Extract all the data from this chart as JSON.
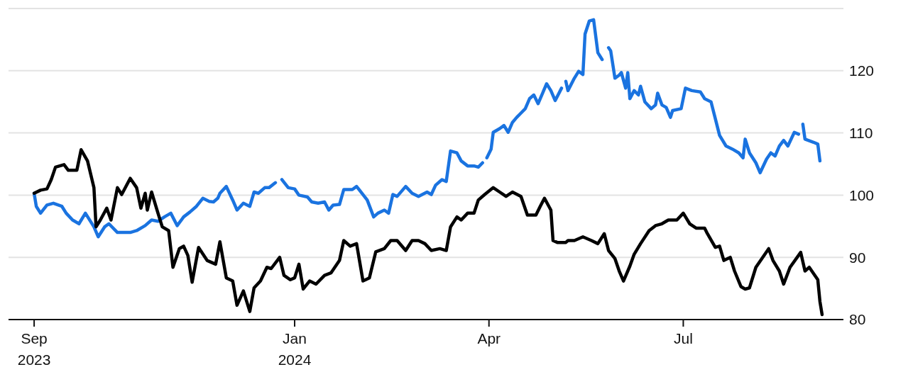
{
  "chart_data": {
    "type": "line",
    "xlim": [
      "2023-08-20",
      "2024-09-14"
    ],
    "xticks": [
      {
        "value": "2023-09-01",
        "label": "Sep 2023"
      },
      {
        "value": "2024-01-01",
        "label": "Jan 2024"
      },
      {
        "value": "2024-04-01",
        "label": "Apr"
      },
      {
        "value": "2024-07-01",
        "label": "Jul"
      }
    ],
    "ylim": [
      80,
      130
    ],
    "yticks": [
      80,
      90,
      100,
      110,
      120
    ],
    "grid": "y",
    "line_style": "solid",
    "marker": "none",
    "series": [
      {
        "color": "#1a73e0",
        "x": [
          "2023-09-01",
          "2023-09-02",
          "2023-09-04",
          "2023-09-07",
          "2023-09-10",
          "2023-09-14",
          "2023-09-16",
          "2023-09-19",
          "2023-09-22",
          "2023-09-25",
          "2023-09-29",
          "2023-10-01",
          "2023-10-04",
          "2023-10-06",
          "2023-10-10",
          "2023-10-13",
          "2023-10-16",
          "2023-10-19",
          "2023-10-23",
          "2023-10-26",
          "2023-10-29",
          "2023-11-01",
          "2023-11-04",
          "2023-11-07",
          "2023-11-10",
          "2023-11-13",
          "2023-11-16",
          "2023-11-19",
          "2023-11-22",
          "2023-11-24",
          "2023-11-26",
          "2023-11-27",
          "2023-11-30",
          "2023-12-03",
          "2023-12-05",
          "2023-12-08",
          "2023-12-11",
          "2023-12-13",
          "2023-12-15",
          "2023-12-18",
          "2023-12-20",
          "2023-12-23",
          "2023-12-24",
          "2023-12-26",
          "2023-12-29",
          "2024-01-01",
          "2024-01-03",
          "2024-01-07",
          "2024-01-09",
          "2024-01-12",
          "2024-01-15",
          "2024-01-17",
          "2024-01-19",
          "2024-01-22",
          "2024-01-24",
          "2024-01-28",
          "2024-01-30",
          "2024-02-02",
          "2024-02-04",
          "2024-02-07",
          "2024-02-09",
          "2024-02-12",
          "2024-02-14",
          "2024-02-16",
          "2024-02-18",
          "2024-02-22",
          "2024-02-25",
          "2024-02-28",
          "2024-03-03",
          "2024-03-05",
          "2024-03-07",
          "2024-03-10",
          "2024-03-12",
          "2024-03-14",
          "2024-03-17",
          "2024-03-19",
          "2024-03-22",
          "2024-03-25",
          "2024-03-27",
          "2024-03-29",
          "2024-03-30",
          "2024-03-31",
          "2024-04-02",
          "2024-04-03",
          "2024-04-06",
          "2024-04-08",
          "2024-04-10",
          "2024-04-12",
          "2024-04-14",
          "2024-04-16",
          "2024-04-18",
          "2024-04-20",
          "2024-04-22",
          "2024-04-24",
          "2024-04-25",
          "2024-04-28",
          "2024-04-30",
          "2024-05-02",
          "2024-05-05",
          "2024-05-06",
          "2024-05-07",
          "2024-05-08",
          "2024-05-11",
          "2024-05-13",
          "2024-05-15",
          "2024-05-16",
          "2024-05-18",
          "2024-05-20",
          "2024-05-22",
          "2024-05-24",
          "2024-05-26",
          "2024-05-27",
          "2024-05-28",
          "2024-05-30",
          "2024-06-01",
          "2024-06-02",
          "2024-06-04",
          "2024-06-05",
          "2024-06-06",
          "2024-06-08",
          "2024-06-10",
          "2024-06-11",
          "2024-06-13",
          "2024-06-16",
          "2024-06-18",
          "2024-06-19",
          "2024-06-21",
          "2024-06-23",
          "2024-06-25",
          "2024-06-26",
          "2024-06-30",
          "2024-07-02",
          "2024-07-05",
          "2024-07-09",
          "2024-07-11",
          "2024-07-14",
          "2024-07-16",
          "2024-07-18",
          "2024-07-21",
          "2024-07-24",
          "2024-07-27",
          "2024-07-29",
          "2024-07-30",
          "2024-08-01",
          "2024-08-04",
          "2024-08-06",
          "2024-08-09",
          "2024-08-11",
          "2024-08-13",
          "2024-08-15",
          "2024-08-17",
          "2024-08-19",
          "2024-08-22",
          "2024-08-24",
          "2024-08-25",
          "2024-08-26",
          "2024-08-27",
          "2024-08-31",
          "2024-09-02",
          "2024-09-03"
        ],
        "values": [
          100.3,
          98.2,
          97.1,
          98.4,
          98.7,
          98.2,
          97.1,
          96.0,
          95.4,
          97.1,
          94.9,
          93.3,
          94.9,
          95.4,
          94.0,
          94.0,
          94.0,
          94.3,
          95.1,
          96.0,
          95.8,
          96.5,
          97.1,
          95.1,
          96.5,
          97.3,
          98.2,
          99.5,
          99.0,
          98.9,
          99.5,
          100.3,
          101.4,
          99.2,
          97.6,
          98.7,
          98.2,
          100.5,
          100.3,
          101.2,
          101.2,
          102.0,
          null,
          102.5,
          101.2,
          101.0,
          100.0,
          99.7,
          98.9,
          98.7,
          98.9,
          97.6,
          98.4,
          98.5,
          100.9,
          100.9,
          101.4,
          100.1,
          99.2,
          96.5,
          97.1,
          97.6,
          97.1,
          100.1,
          99.8,
          101.4,
          100.3,
          99.8,
          100.5,
          100.1,
          101.6,
          102.5,
          102.2,
          107.1,
          106.8,
          105.5,
          104.7,
          104.7,
          104.5,
          105.2,
          null,
          106.0,
          107.4,
          110.1,
          110.7,
          111.2,
          110.1,
          111.7,
          112.5,
          113.2,
          113.9,
          115.5,
          116.1,
          114.7,
          115.5,
          117.9,
          116.8,
          115.2,
          117.2,
          null,
          118.3,
          116.8,
          118.8,
          119.9,
          119.4,
          125.9,
          128.0,
          128.2,
          122.9,
          121.8,
          null,
          123.7,
          123.2,
          118.8,
          119.3,
          119.7,
          117.2,
          119.7,
          115.5,
          116.8,
          116.1,
          117.5,
          115.0,
          113.9,
          114.5,
          116.4,
          114.5,
          114.1,
          112.5,
          113.6,
          113.9,
          117.2,
          116.8,
          116.6,
          115.5,
          115.0,
          112.3,
          109.6,
          107.9,
          107.4,
          106.8,
          106.0,
          109.0,
          106.8,
          105.2,
          103.6,
          105.8,
          106.8,
          106.3,
          107.9,
          108.8,
          107.9,
          110.1,
          109.8,
          null,
          111.4,
          109.0,
          108.5,
          108.2,
          105.5
        ]
      },
      {
        "color": "#000000",
        "x": [
          "2023-09-01",
          "2023-09-04",
          "2023-09-07",
          "2023-09-09",
          "2023-09-11",
          "2023-09-15",
          "2023-09-17",
          "2023-09-21",
          "2023-09-23",
          "2023-09-26",
          "2023-09-29",
          "2023-09-30",
          "2023-10-02",
          "2023-10-05",
          "2023-10-07",
          "2023-10-10",
          "2023-10-12",
          "2023-10-16",
          "2023-10-19",
          "2023-10-21",
          "2023-10-23",
          "2023-10-24",
          "2023-10-26",
          "2023-10-29",
          "2023-10-31",
          "2023-11-03",
          "2023-11-05",
          "2023-11-08",
          "2023-11-10",
          "2023-11-12",
          "2023-11-14",
          "2023-11-17",
          "2023-11-21",
          "2023-11-25",
          "2023-11-27",
          "2023-11-30",
          "2023-12-03",
          "2023-12-05",
          "2023-12-08",
          "2023-12-11",
          "2023-12-13",
          "2023-12-16",
          "2023-12-19",
          "2023-12-21",
          "2023-12-25",
          "2023-12-27",
          "2023-12-30",
          "2024-01-01",
          "2024-01-03",
          "2024-01-05",
          "2024-01-08",
          "2024-01-11",
          "2024-01-15",
          "2024-01-18",
          "2024-01-22",
          "2024-01-24",
          "2024-01-27",
          "2024-01-30",
          "2024-02-02",
          "2024-02-05",
          "2024-02-08",
          "2024-02-12",
          "2024-02-15",
          "2024-02-18",
          "2024-02-22",
          "2024-02-25",
          "2024-02-28",
          "2024-03-02",
          "2024-03-05",
          "2024-03-09",
          "2024-03-12",
          "2024-03-14",
          "2024-03-17",
          "2024-03-19",
          "2024-03-22",
          "2024-03-25",
          "2024-03-27",
          "2024-03-30",
          "2024-04-03",
          "2024-04-06",
          "2024-04-09",
          "2024-04-12",
          "2024-04-16",
          "2024-04-19",
          "2024-04-23",
          "2024-04-25",
          "2024-04-27",
          "2024-04-30",
          "2024-05-01",
          "2024-05-03",
          "2024-05-07",
          "2024-05-08",
          "2024-05-11",
          "2024-05-15",
          "2024-05-19",
          "2024-05-22",
          "2024-05-25",
          "2024-05-27",
          "2024-05-30",
          "2024-06-01",
          "2024-06-03",
          "2024-06-06",
          "2024-06-08",
          "2024-06-11",
          "2024-06-15",
          "2024-06-18",
          "2024-06-21",
          "2024-06-24",
          "2024-06-28",
          "2024-07-01",
          "2024-07-04",
          "2024-07-07",
          "2024-07-11",
          "2024-07-12",
          "2024-07-16",
          "2024-07-18",
          "2024-07-20",
          "2024-07-23",
          "2024-07-25",
          "2024-07-28",
          "2024-07-30",
          "2024-08-01",
          "2024-08-04",
          "2024-08-10",
          "2024-08-12",
          "2024-08-15",
          "2024-08-17",
          "2024-08-20",
          "2024-08-25",
          "2024-08-27",
          "2024-08-29",
          "2024-09-02",
          "2024-09-03",
          "2024-09-04"
        ],
        "values": [
          100.3,
          100.8,
          101.0,
          102.5,
          104.5,
          104.9,
          104.0,
          104.0,
          107.3,
          105.5,
          101.2,
          94.9,
          96.0,
          97.9,
          96.0,
          101.2,
          100.1,
          102.7,
          101.2,
          97.9,
          100.3,
          97.6,
          100.5,
          97.1,
          94.9,
          94.3,
          88.4,
          91.4,
          91.8,
          90.3,
          86.0,
          91.6,
          89.5,
          88.9,
          92.5,
          86.7,
          86.2,
          82.3,
          84.6,
          81.3,
          85.1,
          86.2,
          88.4,
          88.2,
          90.0,
          87.1,
          86.4,
          86.7,
          88.9,
          84.9,
          86.2,
          85.7,
          87.1,
          87.5,
          89.5,
          92.7,
          91.8,
          92.2,
          86.2,
          86.7,
          90.9,
          91.4,
          92.7,
          92.7,
          91.1,
          92.7,
          92.7,
          92.2,
          91.1,
          91.4,
          91.1,
          94.9,
          96.5,
          96.0,
          97.1,
          97.1,
          99.2,
          100.1,
          101.2,
          100.5,
          99.8,
          100.5,
          99.8,
          96.8,
          96.8,
          98.2,
          99.5,
          97.6,
          92.7,
          92.4,
          92.4,
          92.7,
          92.7,
          93.3,
          92.7,
          92.2,
          93.8,
          91.1,
          89.8,
          87.8,
          86.2,
          88.6,
          90.5,
          92.2,
          94.3,
          95.1,
          95.4,
          96.0,
          96.0,
          97.1,
          95.4,
          94.7,
          94.7,
          94.0,
          91.6,
          91.8,
          89.5,
          90.0,
          87.8,
          85.3,
          84.9,
          85.1,
          88.4,
          91.4,
          89.5,
          87.8,
          85.7,
          88.4,
          90.8,
          87.8,
          88.4,
          86.4,
          82.9,
          80.8
        ]
      }
    ]
  }
}
